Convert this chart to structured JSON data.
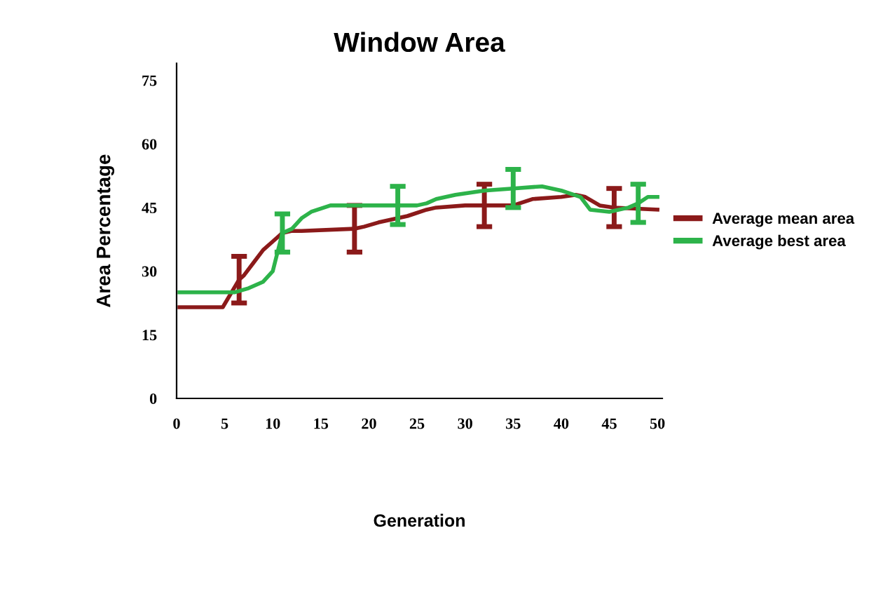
{
  "chart_data": {
    "type": "line",
    "title": "Window Area",
    "xlabel": "Generation",
    "ylabel": "Area Percentage",
    "xlim": [
      0,
      50.5
    ],
    "ylim": [
      0,
      79
    ],
    "xticks": [
      0,
      5,
      10,
      15,
      20,
      25,
      30,
      35,
      40,
      45,
      50
    ],
    "yticks": [
      0,
      15,
      30,
      45,
      60,
      75
    ],
    "grid": false,
    "legend": "right",
    "marker": "none",
    "line_style": "solid",
    "series": [
      {
        "name": "Average mean area",
        "color": "#8b1a1a",
        "x": [
          0.3,
          4.8,
          6.5,
          7,
          8,
          9,
          10,
          11,
          12,
          13,
          18.5,
          19.5,
          21,
          22,
          24,
          26,
          27,
          30,
          32,
          35,
          37,
          40,
          41.5,
          42.5,
          44,
          45.5,
          50
        ],
        "values": [
          21.5,
          21.5,
          28,
          29,
          32,
          35,
          37,
          39,
          39.5,
          39.5,
          40,
          40.5,
          41.5,
          42,
          43,
          44.5,
          45,
          45.5,
          45.5,
          45.5,
          47,
          47.5,
          48,
          47.5,
          45.5,
          45,
          44.5
        ],
        "errors": [
          null,
          null,
          5.5,
          null,
          null,
          null,
          null,
          null,
          null,
          null,
          5.5,
          null,
          null,
          null,
          null,
          null,
          null,
          null,
          5,
          null,
          null,
          null,
          null,
          null,
          null,
          4.5,
          null
        ]
      },
      {
        "name": "Average best area",
        "color": "#2db34a",
        "x": [
          0.3,
          6,
          7.5,
          9,
          10,
          11,
          12,
          13,
          14,
          16,
          18,
          23,
          25,
          26,
          27,
          29,
          32,
          35,
          38,
          40,
          42,
          43,
          45,
          47,
          48,
          49,
          50
        ],
        "values": [
          25,
          25,
          26,
          27.5,
          30,
          39,
          40,
          42.5,
          44,
          45.5,
          45.5,
          45.5,
          45.5,
          46,
          47,
          48,
          49,
          49.5,
          50,
          49,
          47.5,
          44.5,
          44,
          45,
          46,
          47.5,
          47.5
        ],
        "errors": [
          null,
          null,
          null,
          null,
          null,
          4.5,
          null,
          null,
          null,
          null,
          null,
          4.5,
          null,
          null,
          null,
          null,
          null,
          4.5,
          null,
          null,
          null,
          null,
          null,
          null,
          4.5,
          null,
          null
        ]
      }
    ]
  }
}
